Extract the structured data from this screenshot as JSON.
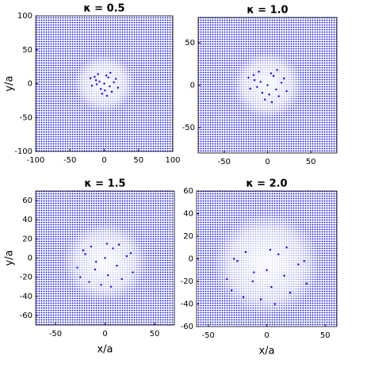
{
  "chart_data": [
    {
      "type": "scatter",
      "title": "κ = 0.5",
      "y_label": "y/a",
      "color": "#0000ee",
      "xlim": [
        -100,
        100
      ],
      "xticks": [
        -100,
        -50,
        0,
        50,
        100
      ],
      "ylim": [
        -100,
        100
      ],
      "yticks": [
        -100,
        -50,
        0,
        50,
        100
      ],
      "x": [
        -12,
        -5,
        3,
        8,
        14,
        -18,
        0,
        6,
        -9,
        11,
        -3,
        17,
        -14,
        4,
        -7,
        9,
        20,
        -20,
        1,
        -11
      ],
      "y": [
        5,
        -8,
        12,
        -4,
        2,
        -3,
        0,
        9,
        14,
        -12,
        -15,
        7,
        10,
        -18,
        3,
        16,
        -6,
        8,
        -10,
        -1
      ]
    },
    {
      "type": "scatter",
      "title": "κ = 1.0",
      "color": "#0000ee",
      "xlim": [
        -80,
        80
      ],
      "xticks": [
        -50,
        0,
        50
      ],
      "ylim": [
        -80,
        80
      ],
      "yticks": [
        -50,
        0,
        50
      ],
      "x": [
        -15,
        -6,
        4,
        10,
        16,
        -20,
        0,
        7,
        -10,
        13,
        -3,
        19,
        -16,
        5,
        -8,
        11,
        22,
        -22,
        2,
        -12
      ],
      "y": [
        6,
        -9,
        14,
        -5,
        3,
        -4,
        0,
        11,
        16,
        -13,
        -17,
        8,
        12,
        -20,
        4,
        18,
        -7,
        9,
        -11,
        -2
      ]
    },
    {
      "type": "scatter",
      "title": "κ = 1.5",
      "x_label": "x/a",
      "y_label": "y/a",
      "color": "#0000ee",
      "xlim": [
        -70,
        70
      ],
      "xticks": [
        -50,
        0,
        50
      ],
      "ylim": [
        -70,
        70
      ],
      "yticks": [
        -60,
        -40,
        -20,
        0,
        20,
        40,
        60
      ],
      "x": [
        -20,
        -10,
        2,
        12,
        22,
        -25,
        0,
        8,
        -14,
        17,
        -4,
        26,
        -22,
        6,
        -9,
        14,
        28,
        -28,
        3,
        -16
      ],
      "y": [
        4,
        -12,
        15,
        -8,
        2,
        -20,
        0,
        10,
        12,
        -22,
        -28,
        5,
        8,
        -30,
        -4,
        14,
        -15,
        -10,
        -18,
        -25
      ]
    },
    {
      "type": "scatter",
      "title": "κ = 2.0",
      "x_label": "x/a",
      "color": "#0000ee",
      "xlim": [
        -60,
        60
      ],
      "xticks": [
        -50,
        0,
        50
      ],
      "ylim": [
        -60,
        60
      ],
      "yticks": [
        -60,
        -40,
        -20,
        0,
        20,
        40,
        60
      ],
      "x": [
        -25,
        -12,
        3,
        15,
        27,
        -30,
        0,
        10,
        -18,
        20,
        -5,
        32,
        -28,
        7,
        -11,
        17,
        34,
        -34,
        4,
        -20
      ],
      "y": [
        -2,
        -20,
        8,
        -15,
        -5,
        -28,
        -10,
        4,
        6,
        -30,
        -36,
        -2,
        0,
        -40,
        -12,
        10,
        -22,
        -18,
        -25,
        -34
      ]
    }
  ]
}
